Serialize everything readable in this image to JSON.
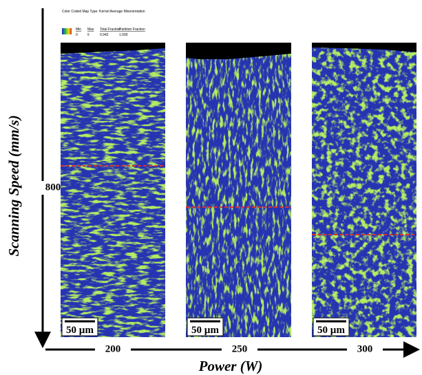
{
  "legend": {
    "title": "Color Coded Map Type: Kernel Average Misorientation",
    "headers": [
      "Min",
      "Max",
      "Total Fraction",
      "Partition Fraction"
    ],
    "values": [
      "0",
      "5",
      "0.942",
      "1.000"
    ]
  },
  "axes": {
    "y_label": "Scanning Speed (mm/s)",
    "y_tick": "800",
    "x_label": "Power (W)",
    "x_ticks": [
      "200",
      "250",
      "300"
    ]
  },
  "panels": [
    {
      "scale_bar": "50 µm"
    },
    {
      "scale_bar": "50 µm"
    },
    {
      "scale_bar": "50 µm"
    }
  ]
}
